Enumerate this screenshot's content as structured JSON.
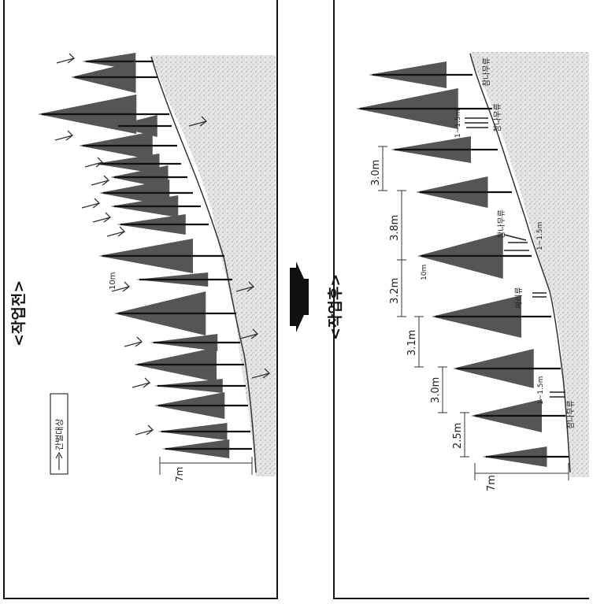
{
  "before": {
    "title": "<작업전>",
    "legend": "간벌대상",
    "scale_label": "7m",
    "spacing_label": "10m"
  },
  "after": {
    "title": "<작업후>",
    "scale_label": "7m",
    "spacing_label": "10m",
    "spacings": [
      "3.0m",
      "3.8m",
      "3.2m",
      "3.1m",
      "3.0m",
      "2.5m"
    ],
    "understory": [
      {
        "species": "참나무류",
        "height": "1~1.5m"
      },
      {
        "species": "참나무류",
        "height": "1~1.5m"
      },
      {
        "species": "싸리류",
        "height": ""
      },
      {
        "species": "참나무류",
        "height": "1~1.5m"
      }
    ],
    "top_label": "참나무류"
  },
  "colors": {
    "tree": "#555555",
    "ink": "#111111",
    "ground": "#cfcfcf"
  }
}
